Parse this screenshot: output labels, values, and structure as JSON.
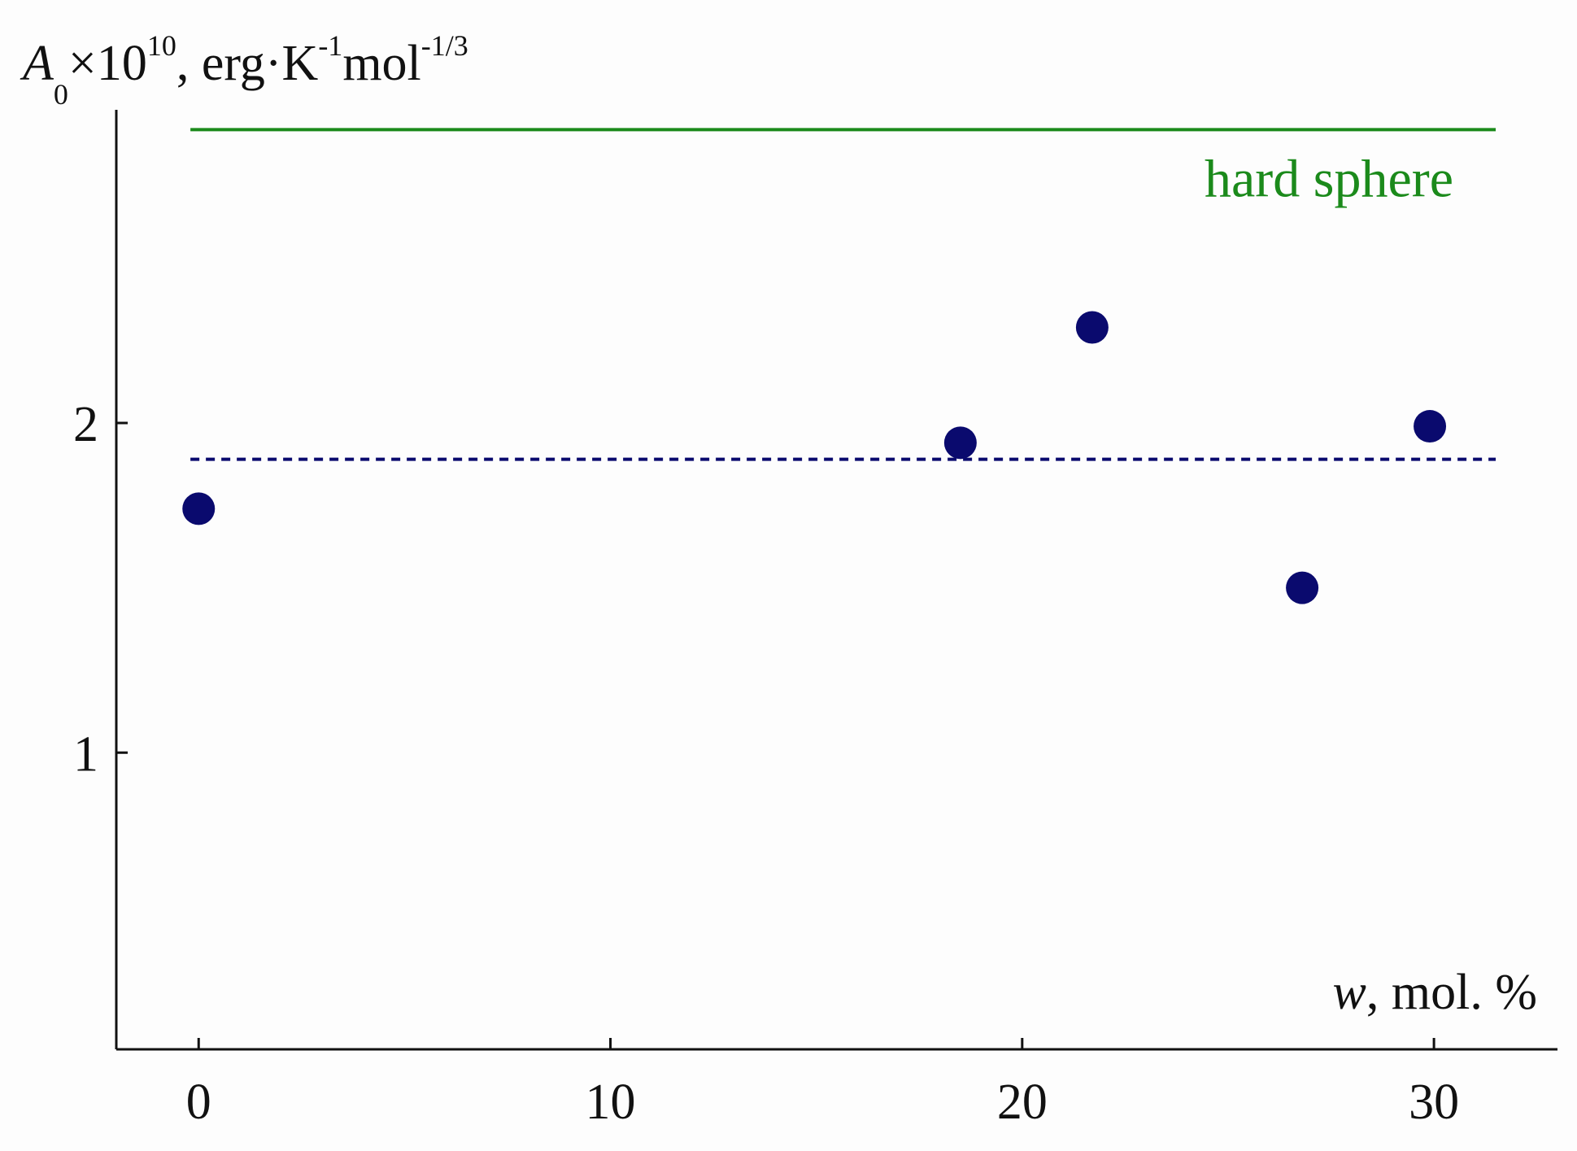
{
  "chart_data": {
    "type": "scatter",
    "title": "",
    "ylabel": {
      "symbol": "A",
      "subscript": "0",
      "times": "×10",
      "exponent": "10",
      "units_pre": ", erg·K",
      "units_exp1": "-1",
      "units_mid": "mol",
      "units_exp2": "-1/3"
    },
    "xlabel": {
      "symbol": "w",
      "units": ", mol. %"
    },
    "xlim": [
      -2,
      33
    ],
    "ylim": [
      0.1,
      2.95
    ],
    "x_ticks": [
      0,
      10,
      20,
      30
    ],
    "x_tick_labels": [
      "0",
      "10",
      "20",
      "30"
    ],
    "y_ticks": [
      1,
      2
    ],
    "y_tick_labels": [
      "1",
      "2"
    ],
    "series": [
      {
        "points": [
          {
            "x": 0,
            "y": 1.74
          },
          {
            "x": 18.5,
            "y": 1.94
          },
          {
            "x": 21.7,
            "y": 2.29
          },
          {
            "x": 26.8,
            "y": 1.5
          },
          {
            "x": 29.9,
            "y": 1.99
          }
        ],
        "color": "#0a0a6e"
      }
    ],
    "reference_lines": [
      {
        "label": "hard sphere",
        "y": 2.89,
        "x_start": -0.2,
        "x_end": 31.5,
        "color": "#1b8a1b",
        "style": "solid"
      },
      {
        "label": "",
        "y": 1.89,
        "x_start": -0.2,
        "x_end": 31.5,
        "color": "#0a0a6e",
        "style": "dashed"
      }
    ],
    "grid": false,
    "legend": "none"
  }
}
